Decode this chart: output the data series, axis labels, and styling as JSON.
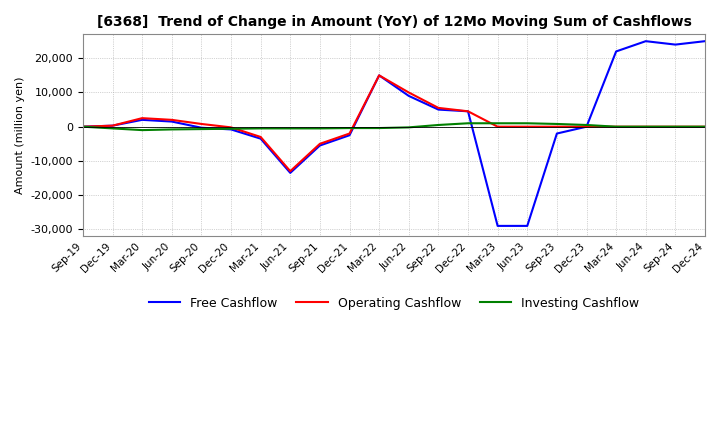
{
  "title": "[6368]  Trend of Change in Amount (YoY) of 12Mo Moving Sum of Cashflows",
  "ylabel": "Amount (million yen)",
  "ylim": [
    -32000,
    27000
  ],
  "yticks": [
    -30000,
    -20000,
    -10000,
    0,
    10000,
    20000
  ],
  "background_color": "#ffffff",
  "grid_color": "#aaaaaa",
  "x_labels": [
    "Sep-19",
    "Dec-19",
    "Mar-20",
    "Jun-20",
    "Sep-20",
    "Dec-20",
    "Mar-21",
    "Jun-21",
    "Sep-21",
    "Dec-21",
    "Mar-22",
    "Jun-22",
    "Sep-22",
    "Dec-22",
    "Mar-23",
    "Jun-23",
    "Sep-23",
    "Dec-23",
    "Mar-24",
    "Jun-24",
    "Sep-24",
    "Dec-24"
  ],
  "operating": [
    0,
    300,
    2500,
    2000,
    800,
    -200,
    -3000,
    -13000,
    -5000,
    -2000,
    15000,
    10000,
    5500,
    4500,
    0,
    0,
    0,
    0,
    0,
    0,
    0,
    0
  ],
  "investing": [
    0,
    -500,
    -1000,
    -800,
    -700,
    -600,
    -500,
    -500,
    -500,
    -400,
    -400,
    -200,
    500,
    1000,
    1000,
    1000,
    800,
    500,
    0,
    0,
    0,
    0
  ],
  "free": [
    0,
    300,
    2000,
    1500,
    -300,
    -800,
    -3500,
    -13500,
    -5500,
    -2500,
    15000,
    9000,
    5000,
    4500,
    -29000,
    -29000,
    -2000,
    0,
    22000,
    25000,
    24000,
    25000
  ],
  "op_color": "#ff0000",
  "inv_color": "#008000",
  "free_color": "#0000ff",
  "legend_labels": [
    "Operating Cashflow",
    "Investing Cashflow",
    "Free Cashflow"
  ]
}
